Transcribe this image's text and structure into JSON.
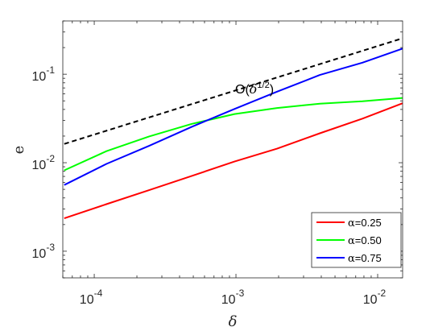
{
  "chart_data": {
    "type": "line",
    "title": "",
    "xlabel": "δ",
    "ylabel": "e",
    "xscale": "log",
    "yscale": "log",
    "xlim": [
      6e-05,
      0.015
    ],
    "ylim": [
      0.0005,
      0.4
    ],
    "x_ticks": [
      {
        "value": 0.0001,
        "base": "10",
        "exp": "-4"
      },
      {
        "value": 0.001,
        "base": "10",
        "exp": "-3"
      },
      {
        "value": 0.01,
        "base": "10",
        "exp": "-2"
      }
    ],
    "y_ticks": [
      {
        "value": 0.001,
        "base": "10",
        "exp": "-3"
      },
      {
        "value": 0.01,
        "base": "10",
        "exp": "-2"
      },
      {
        "value": 0.1,
        "base": "10",
        "exp": "-1"
      }
    ],
    "grid": false,
    "legend_position": "bottom-right",
    "series": [
      {
        "alpha_symbol": "α",
        "alpha_value": "=0.25",
        "color": "#ff0000",
        "dashed": false,
        "x": [
          6.14e-05,
          0.000122,
          0.000244,
          0.000488,
          0.000977,
          0.00195,
          0.00391,
          0.00781,
          0.015
        ],
        "y": [
          0.00235,
          0.0034,
          0.0049,
          0.0071,
          0.0103,
          0.0144,
          0.0215,
          0.0315,
          0.047
        ]
      },
      {
        "alpha_symbol": "α",
        "alpha_value": "=0.50",
        "color": "#00ff00",
        "dashed": false,
        "x": [
          6.14e-05,
          0.000122,
          0.000244,
          0.000488,
          0.000977,
          0.00195,
          0.00391,
          0.00781,
          0.015
        ],
        "y": [
          0.0082,
          0.0135,
          0.0198,
          0.0275,
          0.0355,
          0.0415,
          0.0465,
          0.0495,
          0.054
        ]
      },
      {
        "alpha_symbol": "α",
        "alpha_value": "=0.75",
        "color": "#0000ff",
        "dashed": false,
        "x": [
          6.14e-05,
          0.000122,
          0.000244,
          0.000488,
          0.000977,
          0.00195,
          0.00391,
          0.00781,
          0.015
        ],
        "y": [
          0.0056,
          0.0097,
          0.0155,
          0.0255,
          0.0405,
          0.0635,
          0.098,
          0.135,
          0.195
        ]
      },
      {
        "color": "#000000",
        "dashed": true,
        "x": [
          6.14e-05,
          0.015
        ],
        "y": [
          0.0163,
          0.255
        ]
      }
    ],
    "annotation": {
      "prefix": "O(",
      "symbol": "δ",
      "exponent": "1/2",
      "suffix": ")",
      "at": [
        0.0012,
        0.152
      ]
    }
  }
}
